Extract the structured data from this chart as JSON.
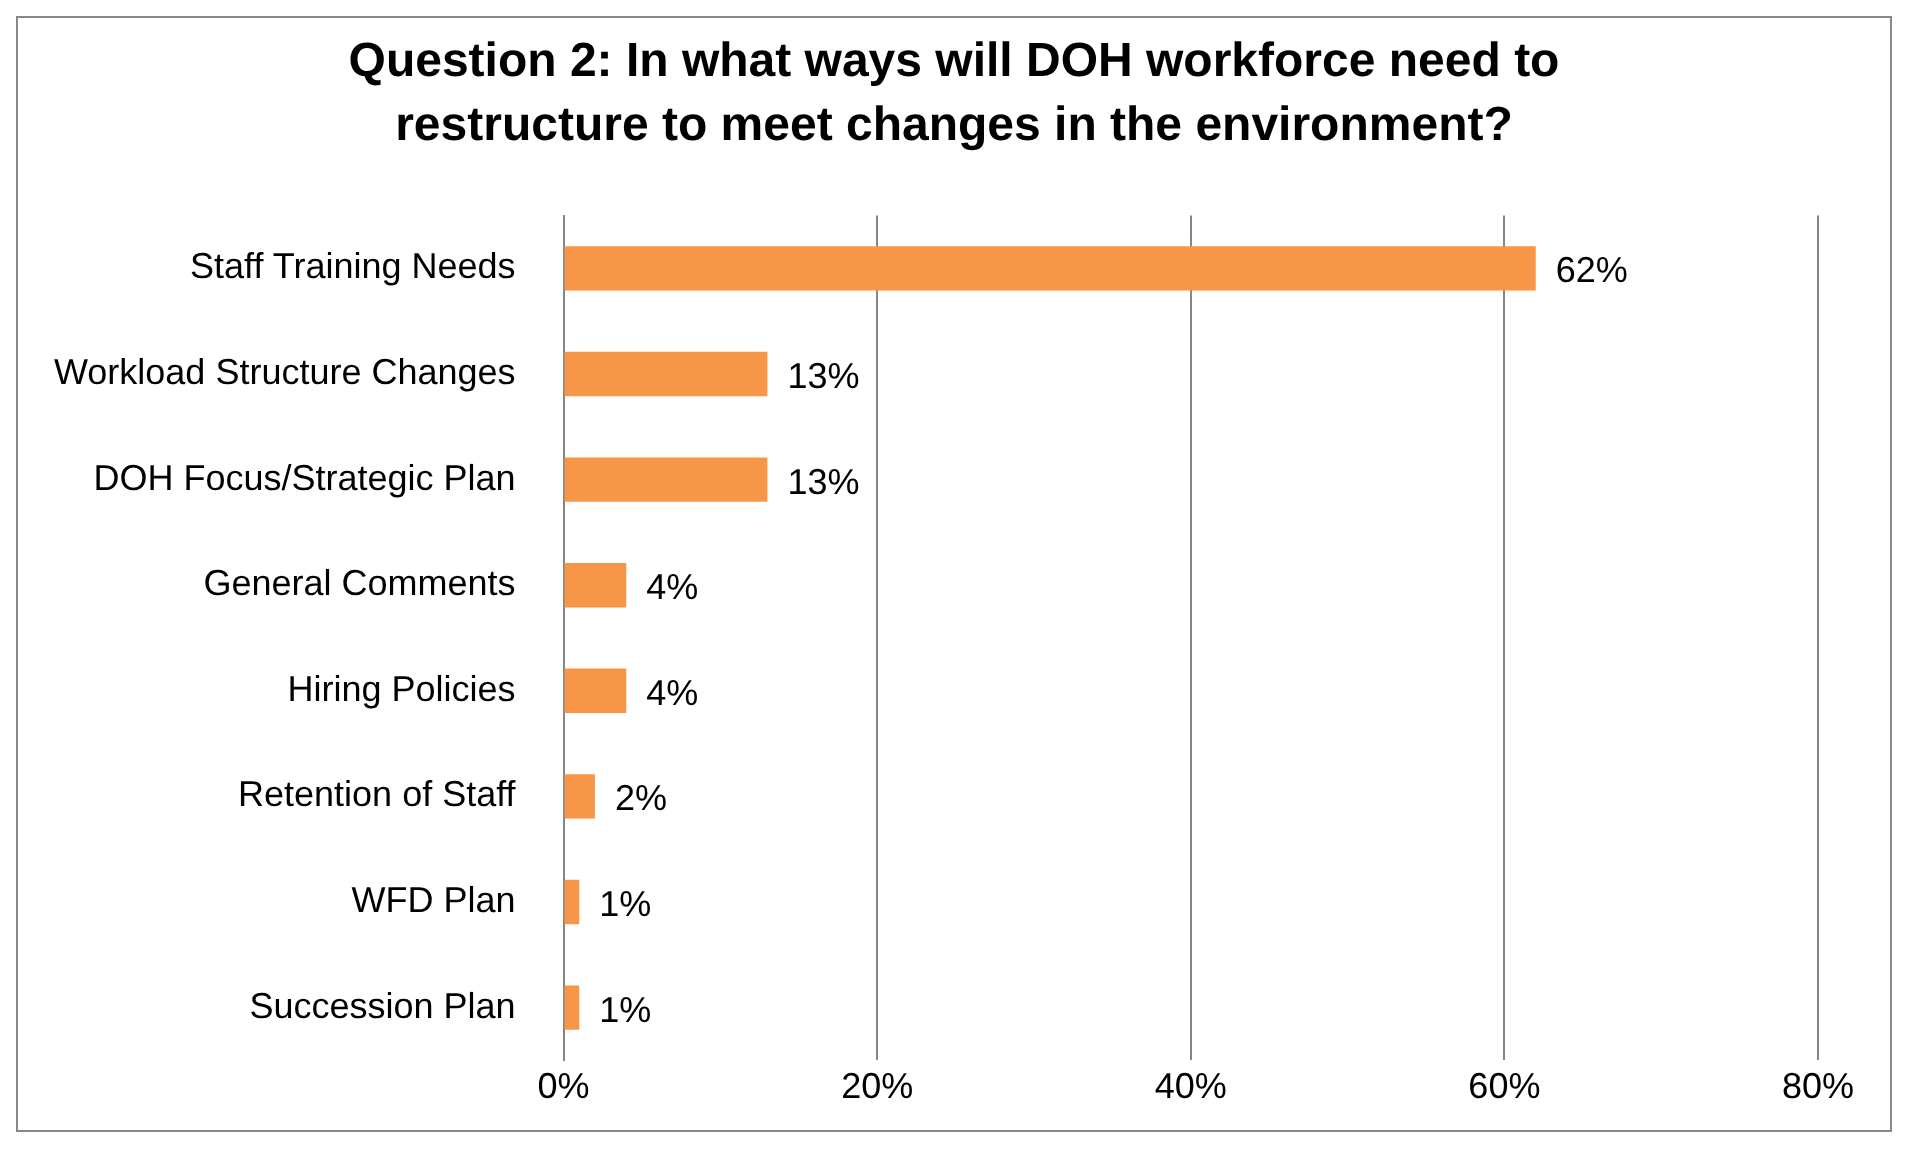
{
  "chart_data": {
    "type": "bar",
    "orientation": "horizontal",
    "title": "Question 2: In what ways will DOH workforce need to restructure to meet changes in the environment?",
    "categories": [
      "Staff Training Needs",
      "Workload Structure Changes",
      "DOH Focus/Strategic Plan",
      "General Comments",
      "Hiring Policies",
      "Retention of Staff",
      "WFD Plan",
      "Succession Plan"
    ],
    "values": [
      62,
      13,
      13,
      4,
      4,
      2,
      1,
      1
    ],
    "value_labels": [
      "62%",
      "13%",
      "13%",
      "4%",
      "4%",
      "2%",
      "1%",
      "1%"
    ],
    "color": "#f79646",
    "xlim": [
      0,
      80
    ],
    "xticks": [
      {
        "value": 0,
        "label": "0%"
      },
      {
        "value": 20,
        "label": "20%"
      },
      {
        "value": 40,
        "label": "40%"
      },
      {
        "value": 60,
        "label": "60%"
      },
      {
        "value": 80,
        "label": "80%"
      }
    ],
    "grid": "x"
  }
}
